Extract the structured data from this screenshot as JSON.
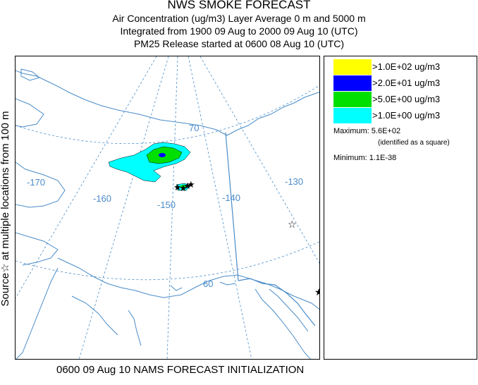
{
  "header": {
    "title": "NWS SMOKE FORECAST",
    "line2": "Air Concentration (ug/m3) Layer Average    0 m and  5000 m",
    "line3": "Integrated from 1900 09 Aug to 2000 09 Aug 10 (UTC)",
    "line4": "PM25 Release started at 0600 08 Aug 10 (UTC)"
  },
  "side_label": "Source☆ at multiple locations    from    100 m",
  "footer": "0600 09 Aug 10 NAMS FORECAST INITIALIZATION",
  "legend": {
    "items": [
      {
        "label": ">1.0E+02 ug/m3",
        "color": "#ffff00"
      },
      {
        "label": ">2.0E+01 ug/m3",
        "color": "#0000ff"
      },
      {
        "label": ">5.0E+00 ug/m3",
        "color": "#00e000"
      },
      {
        "label": ">1.0E+00 ug/m3",
        "color": "#00ffff"
      }
    ],
    "maximum": "Maximum: 5.6E+02",
    "maximum_note": "(identified as a square)",
    "minimum": "Minimum: 1.1E-38"
  },
  "map": {
    "grid_labels": {
      "lon_m170": "-170",
      "lon_m160": "-160",
      "lon_m150": "-150",
      "lon_m140": "-140",
      "lon_m130": "-130",
      "lat_70": "70",
      "lat_60": "60"
    },
    "colors": {
      "grid": "#4a8cc8",
      "coast": "#4a8cc8"
    }
  }
}
